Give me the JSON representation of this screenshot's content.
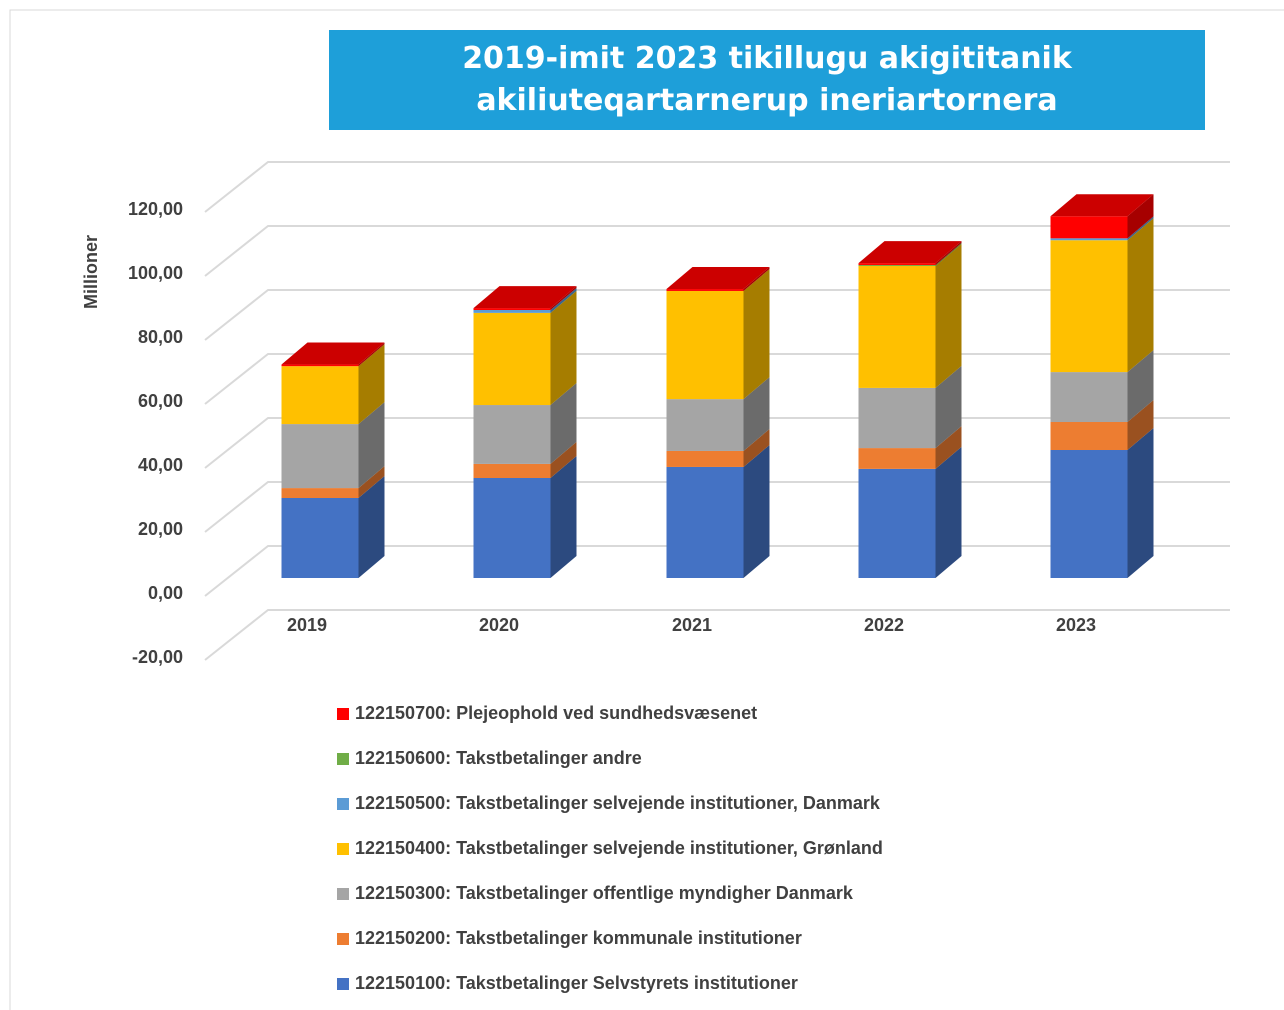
{
  "chart_data": {
    "type": "bar3d_stacked",
    "title": "2019-imit 2023 tikillugu akigititanik akiliuteqartarnerup ineriartornera",
    "y_label": "Millioner",
    "categories": [
      "2019",
      "2020",
      "2021",
      "2022",
      "2023"
    ],
    "series": [
      {
        "name": "122150700: Plejeophold ved sundhedsvæsenet",
        "color": "#ff0000",
        "values": [
          0.5,
          0.6,
          0.6,
          0.6,
          6.9
        ]
      },
      {
        "name": "122150600: Takstbetalinger andre",
        "color": "#70ad47",
        "values": [
          0,
          0,
          0,
          0.3,
          0
        ]
      },
      {
        "name": "122150500: Takstbetalinger selvejende institutioner, Danmark",
        "color": "#5b9bd5",
        "values": [
          0,
          0.9,
          0,
          0,
          0.6
        ]
      },
      {
        "name": "122150400: Takstbetalinger selvejende institutioner, Grønland",
        "color": "#ffc000",
        "values": [
          18.1,
          28.8,
          33.8,
          38.1,
          41.2
        ]
      },
      {
        "name": "122150300: Takstbetalinger offentlige myndigher Danmark",
        "color": "#a5a5a5",
        "values": [
          20,
          18.4,
          16.2,
          18.8,
          15.6
        ]
      },
      {
        "name": "122150200: Takstbetalinger kommunale institutioner",
        "color": "#ed7d31",
        "values": [
          3.1,
          4.4,
          5,
          6.5,
          8.75
        ]
      },
      {
        "name": "122150100: Takstbetalinger Selvstyrets institutioner",
        "color": "#4472c4",
        "values": [
          25,
          31.25,
          34.7,
          34.1,
          40
        ]
      }
    ],
    "ylim": [
      -20,
      120
    ],
    "yticks": [
      {
        "value": -20,
        "label": "-20,00"
      },
      {
        "value": 0,
        "label": "0,00"
      },
      {
        "value": 20,
        "label": "20,00"
      },
      {
        "value": 40,
        "label": "40,00"
      },
      {
        "value": 60,
        "label": "60,00"
      },
      {
        "value": 80,
        "label": "80,00"
      },
      {
        "value": 100,
        "label": "100,00"
      },
      {
        "value": 120,
        "label": "120,00"
      }
    ],
    "grid": true
  }
}
